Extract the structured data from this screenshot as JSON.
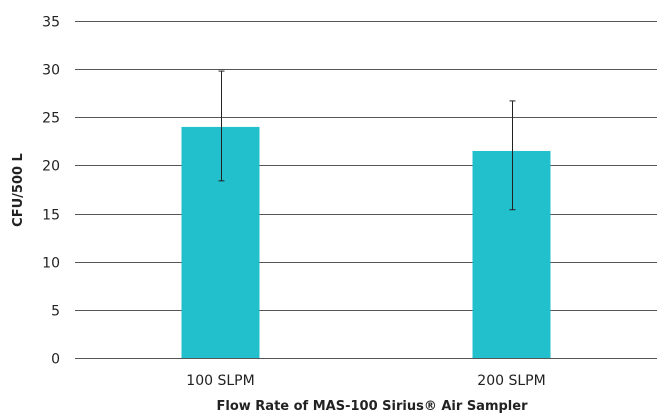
{
  "chart_data": {
    "type": "bar",
    "categories": [
      "100 SLPM",
      "200 SLPM"
    ],
    "values": [
      24.0,
      21.5
    ],
    "error_low": [
      18.4,
      15.4
    ],
    "error_high": [
      29.8,
      26.7
    ],
    "xlabel": "Flow Rate of MAS-100 Sirius® Air Sampler",
    "ylabel": "CFU/500 L",
    "ylim": [
      0,
      35
    ],
    "yticks": [
      0,
      5,
      10,
      15,
      20,
      25,
      30,
      35
    ],
    "grid": true,
    "legend": "none",
    "bar_color": "#22bfcc"
  }
}
